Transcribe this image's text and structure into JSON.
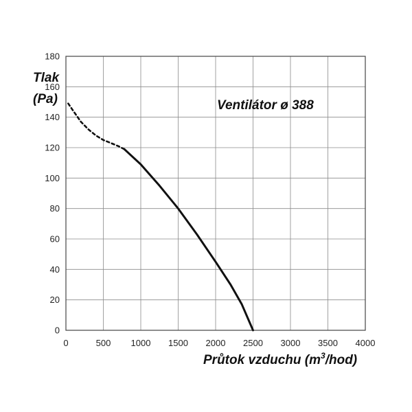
{
  "chart_data": {
    "type": "line",
    "title": "Ventilátor ø 388",
    "ylabel_line1": "Tlak",
    "ylabel_line2": "(Pa)",
    "xlabel_main": "Průtok vzduchu (m",
    "xlabel_sup": "3",
    "xlabel_tail": "/hod)",
    "xlim": [
      0,
      4000
    ],
    "ylim": [
      0,
      180
    ],
    "x_ticks": [
      0,
      500,
      1000,
      1500,
      2000,
      2500,
      3000,
      3500,
      4000
    ],
    "y_ticks": [
      0,
      20,
      40,
      60,
      80,
      100,
      120,
      140,
      160,
      180
    ],
    "grid": true,
    "series": [
      {
        "style": "dashed",
        "x": [
          30,
          100,
          200,
          300,
          400,
          500,
          600,
          700,
          780
        ],
        "y": [
          149,
          144,
          137,
          132,
          128,
          125,
          123,
          121,
          119
        ]
      },
      {
        "style": "solid",
        "x": [
          780,
          1000,
          1250,
          1500,
          1750,
          2000,
          2200,
          2350,
          2500
        ],
        "y": [
          119,
          109,
          95,
          80,
          63,
          45,
          30,
          17,
          0
        ]
      }
    ]
  },
  "colors": {
    "line": "#111111",
    "grid": "#8a8a8a",
    "frame": "#444444"
  }
}
